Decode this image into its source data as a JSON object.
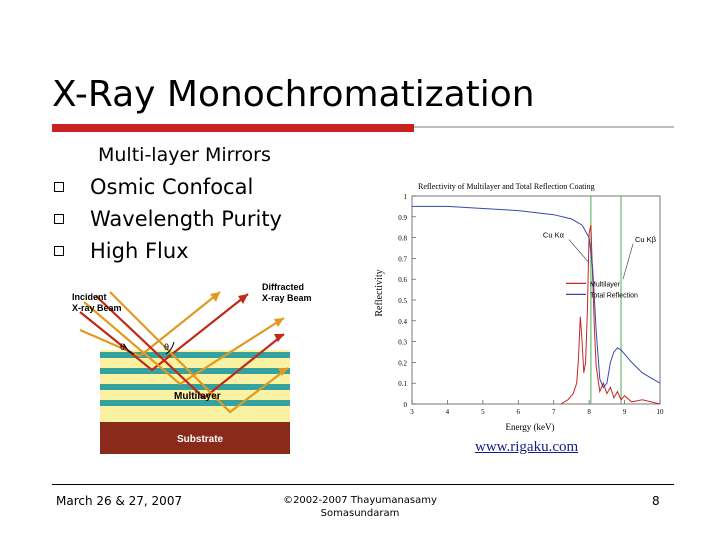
{
  "slide": {
    "title": "X-Ray Monochromatization",
    "subheading": "Multi-layer Mirrors",
    "bullets": [
      "Osmic Confocal",
      "Wavelength Purity",
      "High Flux"
    ],
    "source_link": "www.rigaku.com"
  },
  "diagram": {
    "incident_label_1": "Incident",
    "incident_label_2": "X-ray Beam",
    "diffracted_label_1": "Diffracted",
    "diffracted_label_2": "X-ray Beam",
    "theta_left": "θ",
    "theta_right": "θ",
    "multilayer_label": "Multilayer",
    "substrate_label": "Substrate",
    "colors": {
      "layer_yellow": "#fbf1a3",
      "layer_teal": "#34a3a0",
      "substrate": "#8a2a1a",
      "beam_red": "#c02a1a",
      "beam_orange": "#e09a20"
    }
  },
  "chart_data": {
    "type": "line",
    "title": "Reflectivity of Multilayer and Total Reflection Coating",
    "xlabel": "Energy (keV)",
    "ylabel": "Reflectivity",
    "xlim": [
      3,
      10
    ],
    "ylim": [
      0,
      1
    ],
    "x_ticks": [
      3,
      4,
      5,
      6,
      7,
      8,
      9,
      10
    ],
    "y_ticks": [
      0,
      0.1,
      0.2,
      0.3,
      0.4,
      0.5,
      0.6,
      0.7,
      0.8,
      0.9,
      1
    ],
    "annotations": [
      {
        "text": "Cu Kα",
        "x": 8.05,
        "color": "#4caf50"
      },
      {
        "text": "Cu Kβ",
        "x": 8.9,
        "color": "#4caf50"
      }
    ],
    "legend_position": "right",
    "series": [
      {
        "name": "Multilayer",
        "color": "#c62828",
        "x": [
          7.2,
          7.4,
          7.55,
          7.65,
          7.7,
          7.75,
          7.8,
          7.85,
          7.9,
          7.95,
          8.0,
          8.05,
          8.1,
          8.15,
          8.2,
          8.25,
          8.3,
          8.4,
          8.5,
          8.6,
          8.7,
          8.8,
          8.9,
          9.0,
          9.2,
          9.5,
          10
        ],
        "y": [
          0.0,
          0.02,
          0.05,
          0.1,
          0.22,
          0.42,
          0.3,
          0.15,
          0.2,
          0.45,
          0.82,
          0.86,
          0.6,
          0.35,
          0.18,
          0.12,
          0.06,
          0.1,
          0.05,
          0.08,
          0.03,
          0.06,
          0.02,
          0.04,
          0.01,
          0.02,
          0.0
        ]
      },
      {
        "name": "Total Reflection",
        "color": "#3a4aa8",
        "x": [
          3,
          4,
          5,
          6,
          7,
          7.5,
          7.8,
          8.0,
          8.1,
          8.2,
          8.3,
          8.4,
          8.5,
          8.6,
          8.7,
          8.8,
          8.9,
          9.0,
          9.2,
          9.5,
          10
        ],
        "y": [
          0.95,
          0.95,
          0.94,
          0.93,
          0.91,
          0.89,
          0.86,
          0.8,
          0.65,
          0.35,
          0.12,
          0.08,
          0.1,
          0.2,
          0.25,
          0.27,
          0.26,
          0.24,
          0.2,
          0.15,
          0.1
        ]
      }
    ]
  },
  "footer": {
    "date": "March 26 & 27, 2007",
    "copyright_line1": "©2002-2007 Thayumanasamy",
    "copyright_line2": "Somasundaram",
    "page_number": "8"
  }
}
